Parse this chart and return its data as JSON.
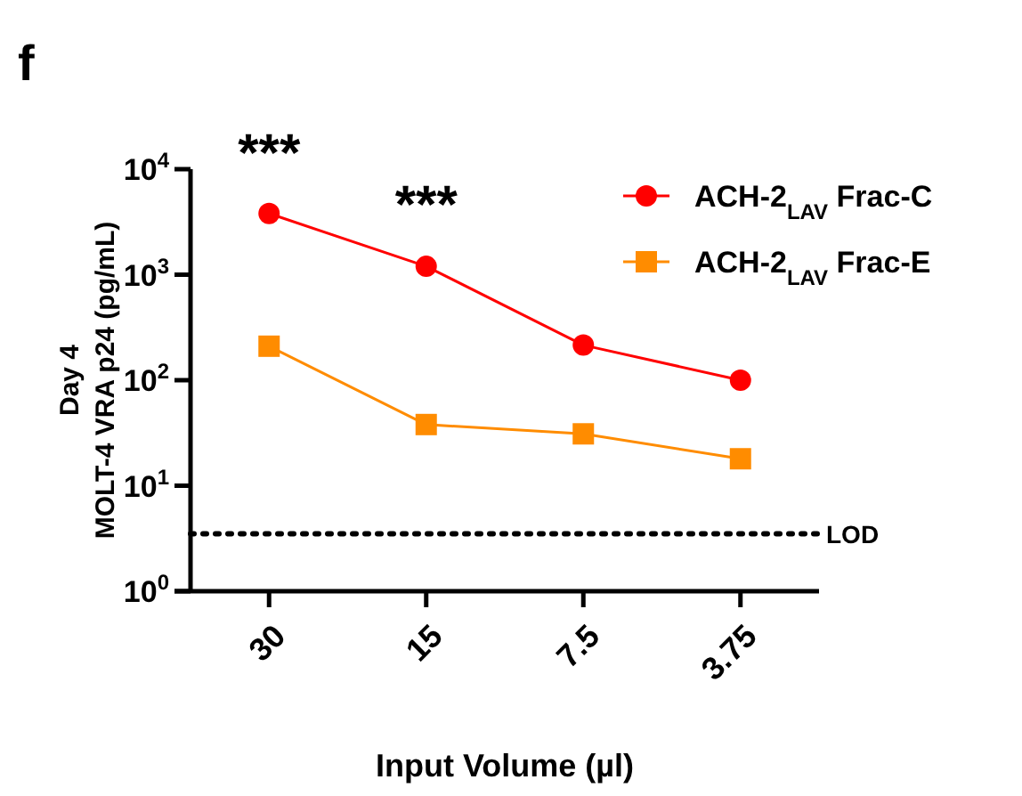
{
  "chart_data": {
    "type": "line",
    "title": "f",
    "xlabel": "Input Volume (µl)",
    "ylabel": "Day 4\nMOLT-4 VRA p24 (pg/mL)",
    "categories": [
      "30",
      "15",
      "7.5",
      "3.75"
    ],
    "series": [
      {
        "name": "ACH-2$_{LAV}$ Frac-C",
        "color": "#ff0000",
        "marker": "circle",
        "values": [
          3800,
          1200,
          215,
          100
        ]
      },
      {
        "name": "ACH-2$_{LAV}$ Frac-E",
        "color": "#ff8c00",
        "marker": "square",
        "values": [
          210,
          38,
          31,
          18
        ]
      }
    ],
    "log": true,
    "ylim": [
      1,
      10000
    ],
    "yticks": [
      {
        "value": 1,
        "label": "10$^{0}$"
      },
      {
        "value": 10,
        "label": "10$^{1}$"
      },
      {
        "value": 100,
        "label": "10$^{2}$"
      },
      {
        "value": 1000,
        "label": "10$^{3}$"
      },
      {
        "value": 10000,
        "label": "10$^{4}$"
      }
    ],
    "ref_lines": [
      {
        "axis": "y",
        "value": 3.5,
        "label": "LOD",
        "color": "#000000",
        "line_style": "dotted"
      }
    ],
    "annotations": [
      "***",
      "***"
    ],
    "legend": "top right",
    "grid": false
  }
}
